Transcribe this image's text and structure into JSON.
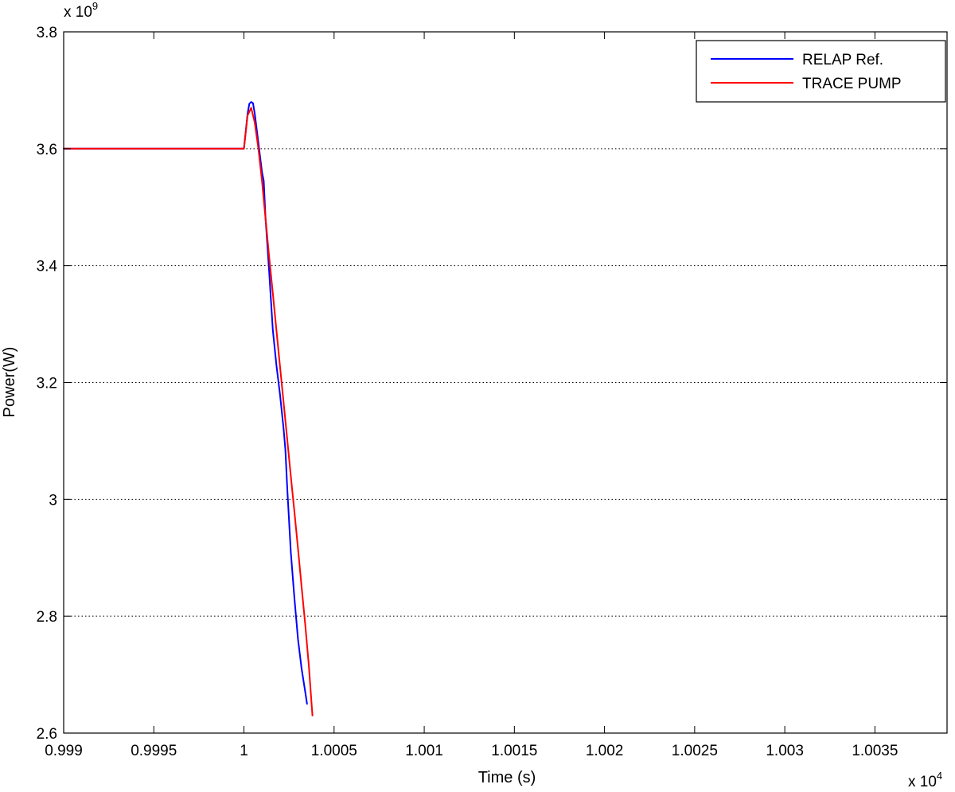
{
  "chart_data": {
    "type": "line",
    "title": "",
    "xlabel": "Time (s)",
    "ylabel": "Power(W)",
    "x_exponent_label": "x 10",
    "x_exponent_power": "4",
    "y_exponent_label": "x 10",
    "y_exponent_power": "9",
    "xlim": [
      0.999,
      1.0039
    ],
    "ylim": [
      2.6,
      3.8
    ],
    "xticks": [
      0.999,
      0.9995,
      1,
      1.0005,
      1.001,
      1.0015,
      1.002,
      1.0025,
      1.003,
      1.0035
    ],
    "xtick_labels": [
      "0.999",
      "0.9995",
      "1",
      "1.0005",
      "1.001",
      "1.0015",
      "1.002",
      "1.0025",
      "1.003",
      "1.0035"
    ],
    "yticks": [
      2.6,
      2.8,
      3,
      3.2,
      3.4,
      3.6,
      3.8
    ],
    "ytick_labels": [
      "2.6",
      "2.8",
      "3",
      "3.2",
      "3.4",
      "3.6",
      "3.8"
    ],
    "grid": "horizontal dotted",
    "legend_position": "top-right",
    "series": [
      {
        "name": "RELAP Ref.",
        "color": "#0000ff",
        "x": [
          0.999,
          1.0,
          1.00002,
          1.00003,
          1.00004,
          1.00005,
          1.00006,
          1.00008,
          1.0001,
          1.00011,
          1.00012,
          1.00014,
          1.00016,
          1.00018,
          1.0002,
          1.00022,
          1.00023,
          1.00024,
          1.00026,
          1.00028,
          1.0003,
          1.00032,
          1.00034,
          1.00035
        ],
        "y": [
          3.6,
          3.6,
          3.66,
          3.677,
          3.68,
          3.678,
          3.66,
          3.61,
          3.56,
          3.545,
          3.48,
          3.39,
          3.29,
          3.23,
          3.18,
          3.12,
          3.085,
          3.02,
          2.91,
          2.83,
          2.76,
          2.71,
          2.67,
          2.65
        ]
      },
      {
        "name": "TRACE PUMP",
        "color": "#ff0000",
        "x": [
          0.999,
          1.0,
          1.00002,
          1.00004,
          1.00006,
          1.00008,
          1.0001,
          1.00012,
          1.00014,
          1.00016,
          1.00018,
          1.0002,
          1.00022,
          1.00024,
          1.00026,
          1.00028,
          1.0003,
          1.00032,
          1.00034,
          1.00036,
          1.00038
        ],
        "y": [
          3.6,
          3.6,
          3.657,
          3.67,
          3.645,
          3.6,
          3.545,
          3.48,
          3.415,
          3.353,
          3.29,
          3.228,
          3.165,
          3.103,
          3.04,
          2.978,
          2.915,
          2.85,
          2.785,
          2.715,
          2.63
        ]
      }
    ]
  }
}
